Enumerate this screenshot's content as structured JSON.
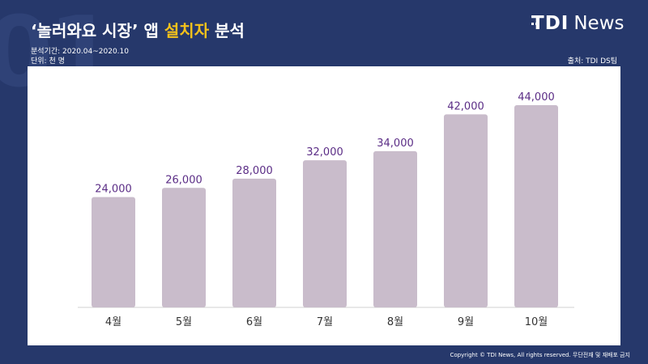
{
  "header": {
    "title_part1": "‘놀러와요 시장’ 앱 ",
    "title_highlight": "설치자",
    "title_part2": " 분석",
    "period": "분석기간: 2020.04~2020.10",
    "unit": "단위: 천 명",
    "source": "출처: TDI DS팀",
    "bg_number": "01"
  },
  "logo": {
    "brand": "TDI",
    "suffix": "News"
  },
  "footer": {
    "copyright": "Copyright © TDI News, All rights reserved. 무단전재 및 재배포 금지"
  },
  "colors": {
    "background": "#26386b",
    "bar": "#c9bccb",
    "value_label": "#5b2d86",
    "highlight": "#f5c21b"
  },
  "chart_data": {
    "type": "bar",
    "title": "‘놀러와요 시장’ 앱 설치자 분석",
    "categories": [
      "4월",
      "5월",
      "6월",
      "7월",
      "8월",
      "9월",
      "10월"
    ],
    "values": [
      24000,
      26000,
      28000,
      32000,
      34000,
      42000,
      44000
    ],
    "value_labels": [
      "24,000",
      "26,000",
      "28,000",
      "32,000",
      "34,000",
      "42,000",
      "44,000"
    ],
    "ylim": [
      0,
      44000
    ],
    "grid": false,
    "legend": "none"
  }
}
